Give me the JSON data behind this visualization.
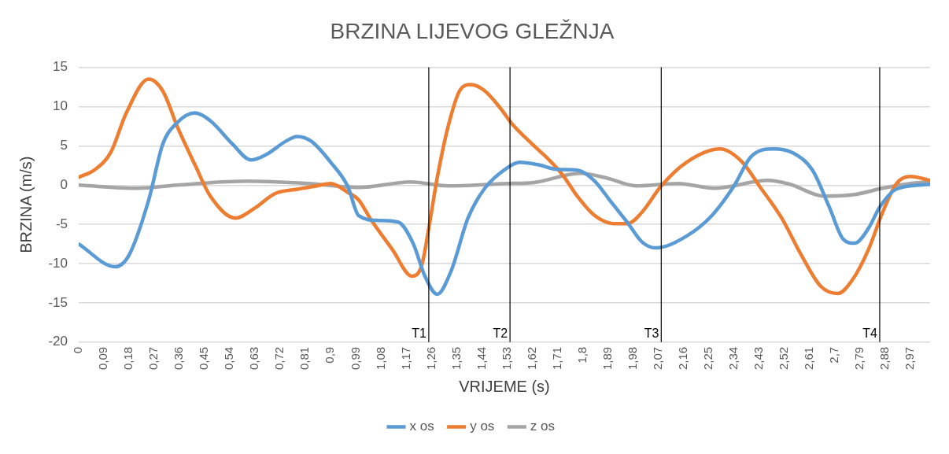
{
  "chart_data": {
    "type": "line",
    "title": "BRZINA LIJEVOG GLEŽNJA",
    "xlabel": "VRIJEME (s)",
    "ylabel": "BRZINA (m/s)",
    "xlim": [
      0,
      3.04
    ],
    "ylim": [
      -20,
      15
    ],
    "yticks": [
      -20,
      -15,
      -10,
      -5,
      0,
      5,
      10,
      15
    ],
    "xticks": [
      0,
      {
        "value": 0.09,
        "label": "0,09"
      },
      {
        "value": 0.18,
        "label": "0,18"
      },
      {
        "value": 0.27,
        "label": "0,27"
      },
      {
        "value": 0.36,
        "label": "0,36"
      },
      {
        "value": 0.45,
        "label": "0,45"
      },
      {
        "value": 0.54,
        "label": "0,54"
      },
      {
        "value": 0.63,
        "label": "0,63"
      },
      {
        "value": 0.72,
        "label": "0,72"
      },
      {
        "value": 0.81,
        "label": "0,81"
      },
      {
        "value": 0.9,
        "label": "0,9"
      },
      {
        "value": 0.99,
        "label": "0,99"
      },
      {
        "value": 1.08,
        "label": "1,08"
      },
      {
        "value": 1.17,
        "label": "1,17"
      },
      {
        "value": 1.26,
        "label": "1,26"
      },
      {
        "value": 1.35,
        "label": "1,35"
      },
      {
        "value": 1.44,
        "label": "1,44"
      },
      {
        "value": 1.53,
        "label": "1,53"
      },
      {
        "value": 1.62,
        "label": "1,62"
      },
      {
        "value": 1.71,
        "label": "1,71"
      },
      {
        "value": 1.8,
        "label": "1,8"
      },
      {
        "value": 1.89,
        "label": "1,89"
      },
      {
        "value": 1.98,
        "label": "1,98"
      },
      {
        "value": 2.07,
        "label": "2,07"
      },
      {
        "value": 2.16,
        "label": "2,16"
      },
      {
        "value": 2.25,
        "label": "2,25"
      },
      {
        "value": 2.34,
        "label": "2,34"
      },
      {
        "value": 2.43,
        "label": "2,43"
      },
      {
        "value": 2.52,
        "label": "2,52"
      },
      {
        "value": 2.61,
        "label": "2,61"
      },
      {
        "value": 2.7,
        "label": "2,7"
      },
      {
        "value": 2.79,
        "label": "2,79"
      },
      {
        "value": 2.88,
        "label": "2,88"
      },
      {
        "value": 2.97,
        "label": "2,97"
      }
    ],
    "grid": "y",
    "legend": "bottom",
    "marker": "none",
    "line_style": "solid",
    "ref_lines": [
      {
        "axis": "x",
        "value": 1.25,
        "label": "T1",
        "color": "#000000"
      },
      {
        "axis": "x",
        "value": 1.54,
        "label": "T2",
        "color": "#000000"
      },
      {
        "axis": "x",
        "value": 2.08,
        "label": "T3",
        "color": "#000000"
      },
      {
        "axis": "x",
        "value": 2.86,
        "label": "T4",
        "color": "#000000"
      }
    ],
    "series": [
      {
        "name": "x os",
        "color": "#5b9bd5",
        "x": [
          0,
          0.13,
          0.18,
          0.25,
          0.3,
          0.35,
          0.415,
          0.47,
          0.55,
          0.615,
          0.67,
          0.74,
          0.78,
          0.83,
          0.9,
          0.96,
          1.0,
          1.07,
          1.14,
          1.195,
          1.235,
          1.28,
          1.33,
          1.39,
          1.45,
          1.53,
          1.575,
          1.64,
          1.71,
          1.78,
          1.84,
          1.9,
          1.96,
          2.01,
          2.06,
          2.17,
          2.26,
          2.34,
          2.4,
          2.48,
          2.55,
          2.62,
          2.68,
          2.73,
          2.77,
          2.82,
          2.86,
          2.92,
          3.04
        ],
        "values": [
          -7.5,
          -10.4,
          -8.9,
          -1.9,
          5.2,
          7.9,
          9.2,
          8.2,
          5.2,
          3.2,
          3.9,
          5.6,
          6.2,
          5.6,
          2.9,
          -0.1,
          -3.9,
          -4.5,
          -4.7,
          -7.5,
          -11.5,
          -13.9,
          -10.9,
          -4.2,
          -0.4,
          2.2,
          2.9,
          2.6,
          2,
          1.9,
          0.6,
          -2.1,
          -4.8,
          -7.2,
          -8,
          -6.5,
          -3.9,
          -0.1,
          3.6,
          4.6,
          4.1,
          1.9,
          -2.8,
          -6.9,
          -7.4,
          -5.5,
          -2.8,
          -0.5,
          0.1
        ]
      },
      {
        "name": "y os",
        "color": "#ed7d31",
        "x": [
          0,
          0.055,
          0.115,
          0.17,
          0.25,
          0.3,
          0.355,
          0.415,
          0.47,
          0.56,
          0.63,
          0.7,
          0.785,
          0.85,
          0.9,
          0.96,
          1.0,
          1.04,
          1.12,
          1.19,
          1.225,
          1.25,
          1.28,
          1.32,
          1.36,
          1.4,
          1.45,
          1.51,
          1.545,
          1.62,
          1.68,
          1.73,
          1.78,
          1.84,
          1.91,
          1.96,
          2.01,
          2.08,
          2.17,
          2.29,
          2.37,
          2.43,
          2.51,
          2.58,
          2.65,
          2.71,
          2.76,
          2.82,
          2.87,
          2.92,
          2.97,
          3.04
        ],
        "values": [
          1,
          1.9,
          4.2,
          9.2,
          13.5,
          12,
          7.2,
          2.6,
          -1.4,
          -4.2,
          -2.9,
          -1.1,
          -0.5,
          -0.1,
          0.2,
          -0.9,
          -1.9,
          -4.2,
          -8.2,
          -11.6,
          -10.2,
          -5.5,
          0.9,
          7.6,
          12,
          12.8,
          12,
          9.6,
          7.9,
          5.2,
          3.2,
          1.2,
          -1.4,
          -3.8,
          -4.9,
          -4.9,
          -3.5,
          -0.1,
          2.9,
          4.6,
          2.9,
          -0.1,
          -4.2,
          -8.9,
          -12.9,
          -13.8,
          -12.2,
          -8.2,
          -3.5,
          0.2,
          1.1,
          0.6
        ]
      },
      {
        "name": "z os",
        "color": "#a5a5a5",
        "x": [
          0,
          0.21,
          0.35,
          0.6,
          0.82,
          1.0,
          1.185,
          1.32,
          1.53,
          1.62,
          1.79,
          1.885,
          1.99,
          2.14,
          2.27,
          2.46,
          2.54,
          2.66,
          2.77,
          2.87,
          2.97,
          3.04
        ],
        "values": [
          0,
          -0.4,
          0,
          0.5,
          0.2,
          -0.3,
          0.4,
          -0.1,
          0.2,
          0.3,
          1.5,
          0.9,
          -0.1,
          0.2,
          -0.4,
          0.6,
          0.1,
          -1.4,
          -1.2,
          -0.4,
          0.2,
          0.4
        ]
      }
    ]
  }
}
